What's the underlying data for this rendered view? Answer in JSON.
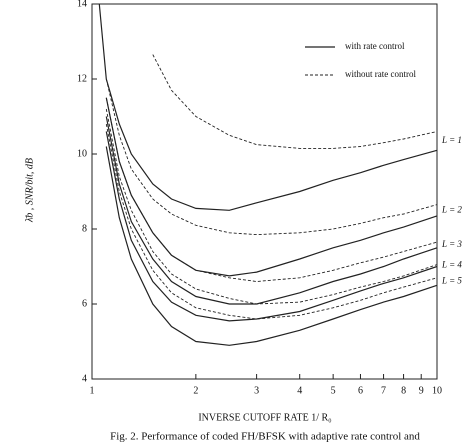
{
  "chart_data": {
    "type": "line",
    "log_x": true,
    "y_label": "λ̄b ,  SNR/bit, dB",
    "x_label": "INVERSE CUTOFF RATE   1/ R₀",
    "caption": "Fig. 2. Performance of coded FH/BFSK with adaptive rate control and",
    "xlim": [
      1,
      10
    ],
    "xticks": [
      1,
      2,
      3,
      4,
      5,
      6,
      7,
      8,
      9,
      10
    ],
    "ylim": [
      4,
      14
    ],
    "yticks": [
      4,
      6,
      8,
      10,
      12,
      14
    ],
    "color": "#222222",
    "legend": [
      {
        "name": "with rate control",
        "dashed": false
      },
      {
        "name": "without rate control",
        "dashed": true
      }
    ],
    "x": [
      1.05,
      1.1,
      1.2,
      1.3,
      1.5,
      1.7,
      2,
      2.5,
      3,
      4,
      5,
      6,
      7,
      8,
      10
    ],
    "series": [
      {
        "name": "L = 1",
        "with": [
          14,
          12.0,
          10.8,
          10.0,
          9.2,
          8.8,
          8.55,
          8.5,
          8.7,
          9.0,
          9.3,
          9.5,
          9.7,
          9.85,
          10.1
        ],
        "without": [
          null,
          null,
          null,
          null,
          12.65,
          11.7,
          11.0,
          10.5,
          10.25,
          10.15,
          10.15,
          10.2,
          10.3,
          10.4,
          10.6
        ]
      },
      {
        "name": "L = 2",
        "with": [
          null,
          11.5,
          9.8,
          8.9,
          7.9,
          7.3,
          6.9,
          6.75,
          6.85,
          7.2,
          7.5,
          7.7,
          7.9,
          8.05,
          8.35
        ],
        "without": [
          null,
          12.0,
          10.5,
          9.6,
          8.8,
          8.4,
          8.1,
          7.9,
          7.85,
          7.9,
          8.0,
          8.15,
          8.3,
          8.4,
          8.65
        ]
      },
      {
        "name": "L = 3",
        "with": [
          null,
          11.0,
          9.2,
          8.2,
          7.2,
          6.6,
          6.2,
          6.0,
          6.0,
          6.3,
          6.6,
          6.8,
          7.0,
          7.2,
          7.5
        ],
        "without": [
          null,
          11.5,
          9.8,
          8.9,
          7.9,
          7.3,
          6.9,
          6.7,
          6.6,
          6.7,
          6.9,
          7.1,
          7.25,
          7.4,
          7.65
        ]
      },
      {
        "name": "L = 4",
        "with": [
          null,
          10.6,
          8.8,
          7.7,
          6.6,
          6.05,
          5.7,
          5.55,
          5.6,
          5.8,
          6.1,
          6.35,
          6.55,
          6.7,
          7.0
        ],
        "without": [
          null,
          11.2,
          9.4,
          8.5,
          7.4,
          6.8,
          6.4,
          6.15,
          6.0,
          6.05,
          6.25,
          6.45,
          6.6,
          6.75,
          7.05
        ]
      },
      {
        "name": "L = 5",
        "with": [
          null,
          10.2,
          8.3,
          7.2,
          6.0,
          5.4,
          5.0,
          4.9,
          5.0,
          5.3,
          5.6,
          5.85,
          6.05,
          6.2,
          6.5
        ],
        "without": [
          null,
          10.8,
          9.0,
          8.0,
          6.9,
          6.3,
          5.9,
          5.7,
          5.6,
          5.7,
          5.9,
          6.1,
          6.3,
          6.45,
          6.7
        ]
      }
    ]
  }
}
